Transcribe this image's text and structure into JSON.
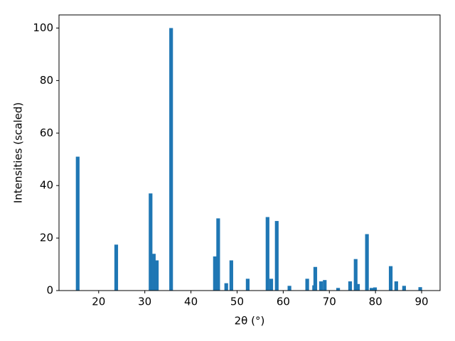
{
  "chart_data": {
    "type": "bar",
    "x": [
      15.45,
      23.8,
      31.25,
      31.95,
      32.6,
      35.7,
      45.2,
      45.9,
      47.65,
      48.75,
      52.3,
      56.6,
      57.4,
      58.6,
      61.35,
      65.2,
      66.7,
      66.95,
      68.2,
      69.0,
      71.9,
      74.5,
      75.7,
      76.2,
      78.15,
      79.15,
      79.9,
      83.3,
      84.5,
      86.2,
      89.7
    ],
    "values": [
      51,
      17.5,
      37,
      14,
      11.5,
      100,
      13,
      27.5,
      2.8,
      11.5,
      4.5,
      28,
      4.5,
      26.5,
      1.8,
      4.5,
      2,
      9,
      3.5,
      4,
      1,
      3.5,
      12,
      2.5,
      21.5,
      1,
      1.2,
      9.3,
      3.5,
      1.8,
      1.3
    ],
    "bar_width": 0.8,
    "color": "#1f77b4",
    "xlabel": "2θ (°)",
    "ylabel": "Intensities (scaled)",
    "xlim": [
      11.4,
      94.0
    ],
    "xticks": [
      20,
      30,
      40,
      50,
      60,
      70,
      80,
      90
    ],
    "ylim": [
      0,
      105
    ],
    "yticks": [
      0,
      20,
      40,
      60,
      80,
      100
    ]
  }
}
